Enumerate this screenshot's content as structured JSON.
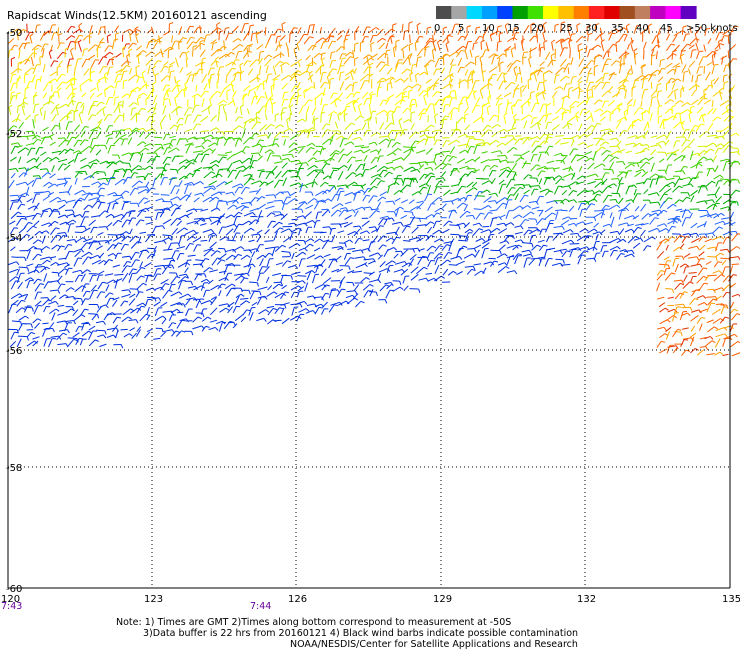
{
  "title": "Rapidscat Winds(12.5KM) 20160121 ascending",
  "legend": {
    "colors": [
      "#4d4d4d",
      "#a6a6a6",
      "#00d8ff",
      "#00a0ff",
      "#0040ff",
      "#00a000",
      "#40e000",
      "#ffff00",
      "#ffc000",
      "#ff8000",
      "#ff2020",
      "#e00000",
      "#a05020",
      "#c08060",
      "#c000c0",
      "#ff00ff",
      "#6000c0"
    ],
    "labels": [
      "0",
      "5",
      "10",
      "15",
      "20",
      "25",
      "30",
      "35",
      "40",
      "45",
      ">50 knots"
    ]
  },
  "axes": {
    "lat_labels": [
      "-50",
      "-52",
      "-54",
      "-56",
      "-58",
      "-60"
    ],
    "lon_labels": [
      "120",
      "123",
      "126",
      "129",
      "132",
      "135"
    ]
  },
  "times": [
    "7:43",
    "7:44"
  ],
  "notes": [
    "Note: 1) Times are GMT 2)Times along bottom correspond to measurement at -50S",
    "3)Data buffer is 22 hrs from 20160121 4) Black wind barbs indicate possible contamination",
    "NOAA/NESDIS/Center for Satellite Applications and Research"
  ]
}
